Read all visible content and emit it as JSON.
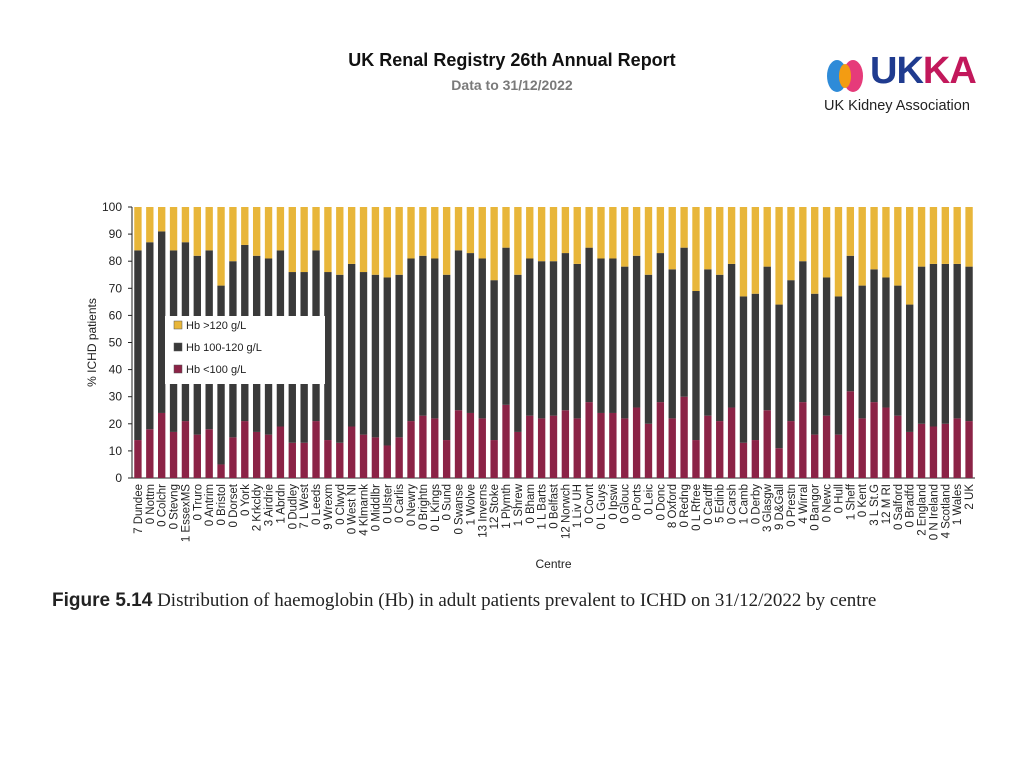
{
  "header": {
    "title": "UK Renal Registry 26th Annual Report",
    "subtitle": "Data to 31/12/2022"
  },
  "logo": {
    "wordmark_uk": "UK",
    "wordmark_ka": "KA",
    "tagline": "UK Kidney Association",
    "colors": {
      "navy": "#1f3b8f",
      "magenta": "#c2185b",
      "orange": "#f39c12",
      "blue": "#2e8bd8",
      "pink": "#e63b7a"
    }
  },
  "caption": {
    "figure_label": "Figure 5.14",
    "text": "Distribution of haemoglobin (Hb) in adult patients prevalent to ICHD on 31/12/2022 by centre"
  },
  "chart_data": {
    "type": "bar",
    "stacked": true,
    "ylabel": "% ICHD patients",
    "xlabel": "Centre",
    "ylim": [
      0,
      100
    ],
    "yticks": [
      0,
      10,
      20,
      30,
      40,
      50,
      60,
      70,
      80,
      90,
      100
    ],
    "legend_position": "left",
    "categories": [
      "7 Dundee",
      "0 Nottm",
      "0 Colchr",
      "0 Stevng",
      "1 EssexMS",
      "0 Truro",
      "0 Antrim",
      "0 Bristol",
      "0 Dorset",
      "0 York",
      "2 Krkcldy",
      "3 Airdrie",
      "1 Abrdn",
      "0 Dudley",
      "7 L West",
      "0 Leeds",
      "9 Wrexm",
      "0 Clwyd",
      "0 West NI",
      "4 Klmarnk",
      "0 Middlbr",
      "0 Ulster",
      "0 Carlis",
      "0 Newry",
      "0 Brightn",
      "0 L Kings",
      "0 Sund",
      "0 Swanse",
      "1 Wolve",
      "13 Inverns",
      "12 Stoke",
      "1 Plymth",
      "1 Shrew",
      "0 Bham",
      "1 L Barts",
      "0 Belfast",
      "12 Norwch",
      "1 Liv UH",
      "0 Covnt",
      "0 L Guys",
      "0 Ipswi",
      "0 Glouc",
      "0 Ports",
      "0 Leic",
      "0 Donc",
      "8 Oxford",
      "0 Redng",
      "0 L Rfree",
      "0 Cardff",
      "5 Edinb",
      "0 Carsh",
      "1 Camb",
      "0 Derby",
      "3 Glasgw",
      "9 D&Gall",
      "0 Prestn",
      "4 Wirral",
      "0 Bangor",
      "0 Newc",
      "0 Hull",
      "1 Sheff",
      "0 Kent",
      "3 L St.G",
      "12 M RI",
      "0 Salford",
      "0 Bradfd",
      "2 England",
      "0 N Ireland",
      "4 Scotland",
      "1 Wales",
      "2 UK"
    ],
    "series": [
      {
        "name": "Hb <100 g/L",
        "color": "#8b2346",
        "values": [
          14,
          18,
          24,
          17,
          21,
          16,
          18,
          5,
          15,
          21,
          17,
          16,
          19,
          13,
          13,
          21,
          14,
          13,
          19,
          16,
          15,
          12,
          15,
          21,
          23,
          22,
          14,
          25,
          24,
          22,
          14,
          27,
          17,
          23,
          22,
          23,
          25,
          22,
          28,
          24,
          24,
          22,
          26,
          20,
          28,
          22,
          30,
          14,
          23,
          21,
          26,
          13,
          14,
          25,
          11,
          21,
          28,
          16,
          23,
          16,
          32,
          22,
          28,
          26,
          23,
          17,
          20,
          19,
          20,
          22,
          21
        ]
      },
      {
        "name": "Hb 100-120 g/L",
        "color": "#3a3a3a",
        "values": [
          70,
          69,
          67,
          67,
          66,
          66,
          66,
          66,
          65,
          65,
          65,
          65,
          65,
          63,
          63,
          63,
          62,
          62,
          60,
          60,
          60,
          62,
          60,
          60,
          59,
          59,
          61,
          59,
          59,
          59,
          59,
          58,
          58,
          58,
          58,
          57,
          58,
          57,
          57,
          57,
          57,
          56,
          56,
          55,
          55,
          55,
          55,
          55,
          54,
          54,
          53,
          54,
          54,
          53,
          53,
          52,
          52,
          52,
          51,
          51,
          50,
          49,
          49,
          48,
          48,
          47,
          58,
          60,
          59,
          57,
          57
        ]
      },
      {
        "name": "Hb >120 g/L",
        "color": "#e8b63a",
        "values": [
          16,
          13,
          9,
          16,
          13,
          18,
          16,
          29,
          20,
          14,
          18,
          19,
          16,
          24,
          24,
          16,
          24,
          25,
          21,
          24,
          25,
          26,
          25,
          19,
          18,
          19,
          25,
          16,
          17,
          19,
          27,
          15,
          25,
          19,
          20,
          20,
          17,
          21,
          15,
          19,
          19,
          22,
          18,
          25,
          17,
          23,
          15,
          31,
          23,
          25,
          21,
          33,
          32,
          22,
          36,
          27,
          20,
          32,
          26,
          33,
          18,
          29,
          23,
          26,
          29,
          36,
          22,
          21,
          21,
          21,
          22
        ]
      }
    ]
  }
}
